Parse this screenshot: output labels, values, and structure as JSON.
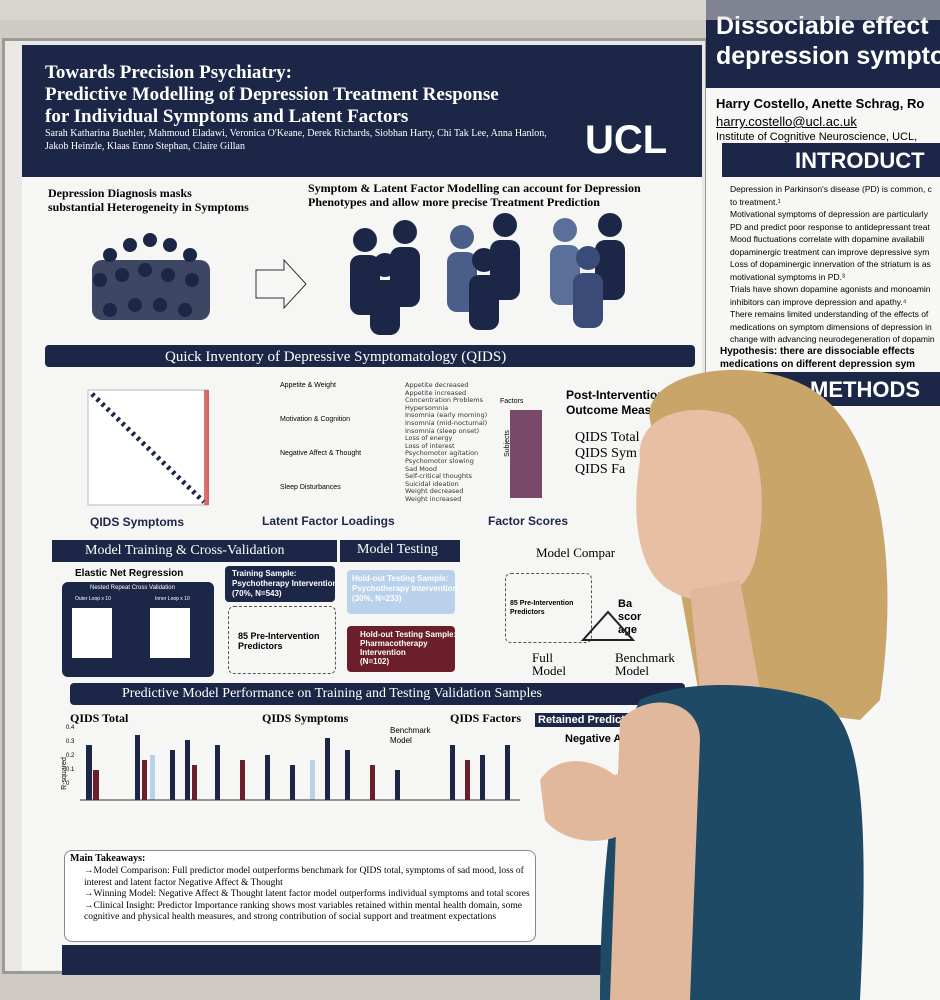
{
  "left_poster": {
    "title": [
      "Towards Precision Psychiatry:",
      "Predictive Modelling of Depression Treatment Response",
      "for Individual Symptoms and Latent Factors"
    ],
    "authors": [
      "Sarah Katharina Buehler, Mahmoud Eladawi, Veronica O'Keane, Derek Richards, Siobhan Harty, Chi Tak Lee, Anna Hanlon,",
      "Jakob Heinzle, Klaas Enno Stephan, Claire Gillan"
    ],
    "logo": "UCL",
    "intro_left": [
      "Depression Diagnosis masks",
      "substantial Heterogeneity in Symptoms"
    ],
    "intro_right": [
      "Symptom & Latent Factor Modelling can account for Depression",
      "Phenotypes and allow more precise Treatment Prediction"
    ],
    "qids_heading": "Quick Inventory of Depressive Symptomatology (QIDS)",
    "factor_panels": [
      "Appetite & Weight",
      "Motivation & Cognition",
      "Negative Affect & Thought",
      "Sleep Disturbances"
    ],
    "symptom_legend": [
      "Appetite decreased",
      "Appetite increased",
      "Concentration Problems",
      "Hypersomnia",
      "Insomnia (early morning)",
      "Insomnia (mid-nocturnal)",
      "Insomnia (sleep onset)",
      "Loss of energy",
      "Loss of interest",
      "Psychomotor agitation",
      "Psychomotor slowing",
      "Sad Mood",
      "Self-critical thoughts",
      "Suicidal ideation",
      "Weight decreased",
      "Weight increased"
    ],
    "factors_axis": "Factors",
    "subjects_axis": "Subjects",
    "flow_labels": [
      "QIDS Symptoms",
      "Latent Factor Loadings",
      "Factor Scores"
    ],
    "outcome_heading": [
      "Post-Intervention",
      "Outcome Meas"
    ],
    "outcomes": [
      "QIDS Total",
      "QIDS Sym",
      "QIDS Fa"
    ],
    "training_heading": "Model Training & Cross-Validation",
    "testing_heading": "Model Testing",
    "comparison_heading": "Model Compar",
    "elastic_net": "Elastic Net Regression",
    "nested": "Nested Repeat Cross Validation",
    "outer": "Outer Loop x 10",
    "inner": "Inner Loop x 10",
    "training_sample": [
      "Training Sample:",
      "Psychotherapy Intervention",
      "(70%, N=543)"
    ],
    "predictors": [
      "85 Pre-Intervention",
      "Predictors"
    ],
    "holdout_psych": [
      "Hold-out Testing Sample:",
      "Psychotherapy Intervention",
      "(30%, N=233)"
    ],
    "holdout_pharm": [
      "Hold-out Testing Sample:",
      "Pharmacotherapy",
      "Intervention",
      "(N=102)"
    ],
    "comparison_predictors": [
      "85 Pre-Intervention",
      "Predictors"
    ],
    "baseline": [
      "Ba",
      "scor",
      "age"
    ],
    "full_model": [
      "Full",
      "Model"
    ],
    "benchmark_model": [
      "Benchmark",
      "Model"
    ],
    "performance_heading": "Predictive Model Performance on Training and Testing Validation Samples",
    "chart_titles": [
      "QIDS Total",
      "QIDS Symptoms",
      "QIDS Factors"
    ],
    "benchmark_legend": [
      "Benchmark",
      "Model"
    ],
    "y_label": "R-squared",
    "y_ticks": [
      "0.4",
      "0.3",
      "0.2",
      "0.1",
      "0"
    ],
    "retained": "Retained Predictor Coeffic",
    "negative_affect": "Negative Affect & Tho",
    "takeaways_heading": "Main Takeaways:",
    "takeaways": [
      "→Model Comparison: Full predictor model outperforms benchmark for QIDS total, symptoms of sad mood, loss of",
      "interest and latent factor Negative Affect & Thought",
      "→Winning Model: Negative Affect & Thought latent factor model outperforms individual symptoms and total scores",
      "→Clinical Insight: Predictor Importance ranking shows most variables retained within mental health domain, some",
      "cognitive and physical health measures, and strong contribution of social support and treatment expectations"
    ]
  },
  "right_poster": {
    "title": [
      "Dissociable effect",
      "depression sympto"
    ],
    "authors": "Harry Costello, Anette Schrag, Ro",
    "email": "harry.costello@ucl.ac.uk",
    "institute": "Institute of Cognitive Neuroscience, UCL,",
    "intro_heading": "INTRODUCT",
    "bullets": [
      "Depression in Parkinson's disease (PD) is common, c",
      "to treatment.¹",
      "Motivational symptoms of depression are particularly",
      "PD and predict poor response to antidepressant treat",
      "Mood fluctuations correlate with dopamine availabili",
      "dopaminergic treatment can improve depressive sym",
      "Loss of dopaminergic innervation of the striatum is as",
      "motivational symptoms in PD.³",
      "Trials have shown dopamine agonists and monoamin",
      "inhibitors can improve depression and apathy.⁴",
      "There remains limited understanding of the effects of",
      "medications on symptom dimensions of depression in",
      "change with advancing neurodegeneration of dopamin"
    ],
    "hypothesis": [
      "Hypothesis: there are dissociable effects",
      "medications on different depression sym"
    ],
    "methods_heading": "METHODS"
  }
}
